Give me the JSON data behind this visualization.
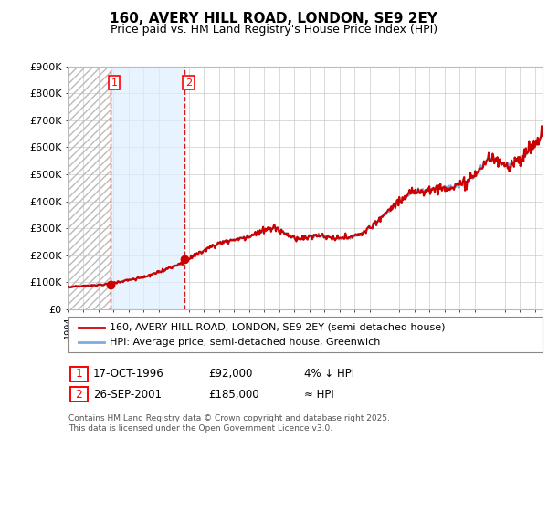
{
  "title": "160, AVERY HILL ROAD, LONDON, SE9 2EY",
  "subtitle": "Price paid vs. HM Land Registry's House Price Index (HPI)",
  "ylabel_ticks": [
    "£0",
    "£100K",
    "£200K",
    "£300K",
    "£400K",
    "£500K",
    "£600K",
    "£700K",
    "£800K",
    "£900K"
  ],
  "ylim": [
    0,
    900000
  ],
  "xlim_start": 1994.0,
  "xlim_end": 2025.5,
  "sale1_x": 1996.79,
  "sale1_y": 92000,
  "sale2_x": 2001.73,
  "sale2_y": 185000,
  "sale1_date": "17-OCT-1996",
  "sale1_price": "£92,000",
  "sale1_hpi": "4% ↓ HPI",
  "sale2_date": "26-SEP-2001",
  "sale2_price": "£185,000",
  "sale2_hpi": "≈ HPI",
  "line1_label": "160, AVERY HILL ROAD, LONDON, SE9 2EY (semi-detached house)",
  "line2_label": "HPI: Average price, semi-detached house, Greenwich",
  "line1_color": "#cc0000",
  "line2_color": "#7aace0",
  "vline_color": "#cc0000",
  "background_color": "#ffffff",
  "grid_color": "#cccccc",
  "footnote": "Contains HM Land Registry data © Crown copyright and database right 2025.\nThis data is licensed under the Open Government Licence v3.0.",
  "title_fontsize": 11,
  "subtitle_fontsize": 9,
  "axis_fontsize": 8,
  "legend_fontsize": 8,
  "footnote_fontsize": 6.5,
  "hpi_years": [
    1994.0,
    1994.5,
    1995.0,
    1995.5,
    1996.0,
    1996.5,
    1997.0,
    1997.5,
    1998.0,
    1998.5,
    1999.0,
    1999.5,
    2000.0,
    2000.5,
    2001.0,
    2001.5,
    2002.0,
    2002.5,
    2003.0,
    2003.5,
    2004.0,
    2004.5,
    2005.0,
    2005.5,
    2006.0,
    2006.5,
    2007.0,
    2007.5,
    2008.0,
    2008.5,
    2009.0,
    2009.5,
    2010.0,
    2010.5,
    2011.0,
    2011.5,
    2012.0,
    2012.5,
    2013.0,
    2013.5,
    2014.0,
    2014.5,
    2015.0,
    2015.5,
    2016.0,
    2016.5,
    2017.0,
    2017.5,
    2018.0,
    2018.5,
    2019.0,
    2019.5,
    2020.0,
    2020.5,
    2021.0,
    2021.5,
    2022.0,
    2022.5,
    2023.0,
    2023.5,
    2024.0,
    2024.5,
    2025.0,
    2025.5
  ],
  "hpi_vals": [
    83000,
    84000,
    86000,
    88000,
    90000,
    92000,
    97000,
    103000,
    109000,
    113000,
    119000,
    127000,
    137000,
    149000,
    160000,
    172000,
    186000,
    202000,
    218000,
    232000,
    244000,
    252000,
    258000,
    262000,
    270000,
    280000,
    292000,
    300000,
    295000,
    278000,
    265000,
    260000,
    268000,
    273000,
    270000,
    265000,
    262000,
    265000,
    270000,
    282000,
    300000,
    322000,
    350000,
    378000,
    405000,
    420000,
    435000,
    440000,
    445000,
    448000,
    450000,
    455000,
    458000,
    475000,
    500000,
    530000,
    560000,
    548000,
    535000,
    540000,
    555000,
    580000,
    610000,
    645000
  ]
}
